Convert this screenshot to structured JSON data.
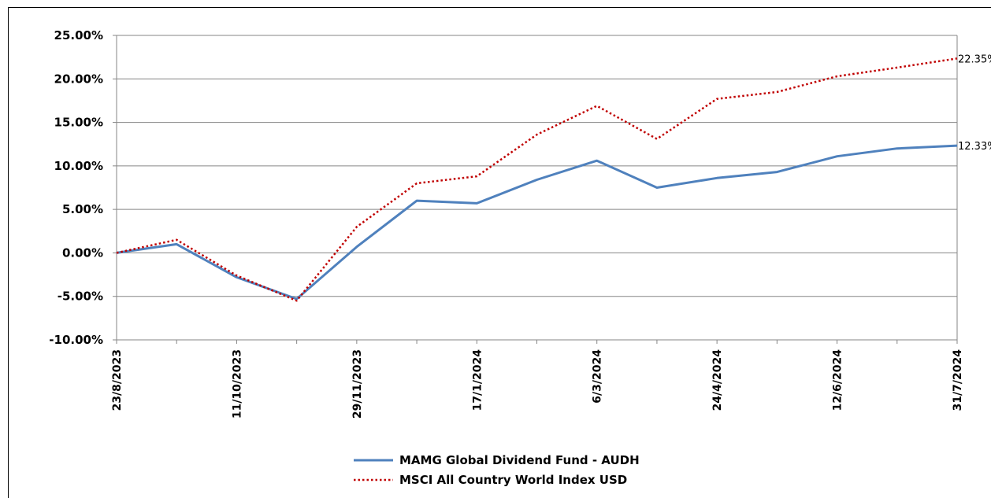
{
  "chart_data": {
    "type": "line",
    "title": "",
    "xlabel": "",
    "ylabel": "",
    "x_ticks": [
      "23/8/2023",
      "11/10/2023",
      "29/11/2023",
      "17/1/2024",
      "6/3/2024",
      "24/4/2024",
      "12/6/2024",
      "31/7/2024"
    ],
    "y_ticks": [
      "25.00%",
      "20.00%",
      "15.00%",
      "10.00%",
      "5.00%",
      "0.00%",
      "-5.00%",
      "-10.00%"
    ],
    "ylim": [
      -10,
      25
    ],
    "grid": true,
    "legend_position": "bottom",
    "x": [
      "2023-08-23",
      "2023-09-16",
      "2023-10-11",
      "2023-11-05",
      "2023-11-29",
      "2023-12-24",
      "2024-01-17",
      "2024-02-10",
      "2024-03-06",
      "2024-03-30",
      "2024-04-24",
      "2024-05-18",
      "2024-06-12",
      "2024-07-06",
      "2024-07-31"
    ],
    "series": [
      {
        "name": "MAMG Global Dividend Fund - AUDH",
        "color": "#4f81bd",
        "style": "solid",
        "values": [
          0.0,
          1.0,
          -2.8,
          -5.3,
          0.7,
          6.0,
          5.7,
          8.4,
          10.6,
          7.5,
          8.6,
          9.3,
          11.1,
          12.0,
          12.33
        ],
        "end_label": "12.33%"
      },
      {
        "name": "MSCI All Country World Index USD",
        "color": "#c00000",
        "style": "dotted",
        "values": [
          0.0,
          1.5,
          -2.6,
          -5.5,
          3.0,
          8.0,
          8.8,
          13.6,
          16.9,
          13.1,
          17.7,
          18.5,
          20.3,
          21.3,
          22.35
        ],
        "end_label": "22.35%"
      }
    ]
  }
}
